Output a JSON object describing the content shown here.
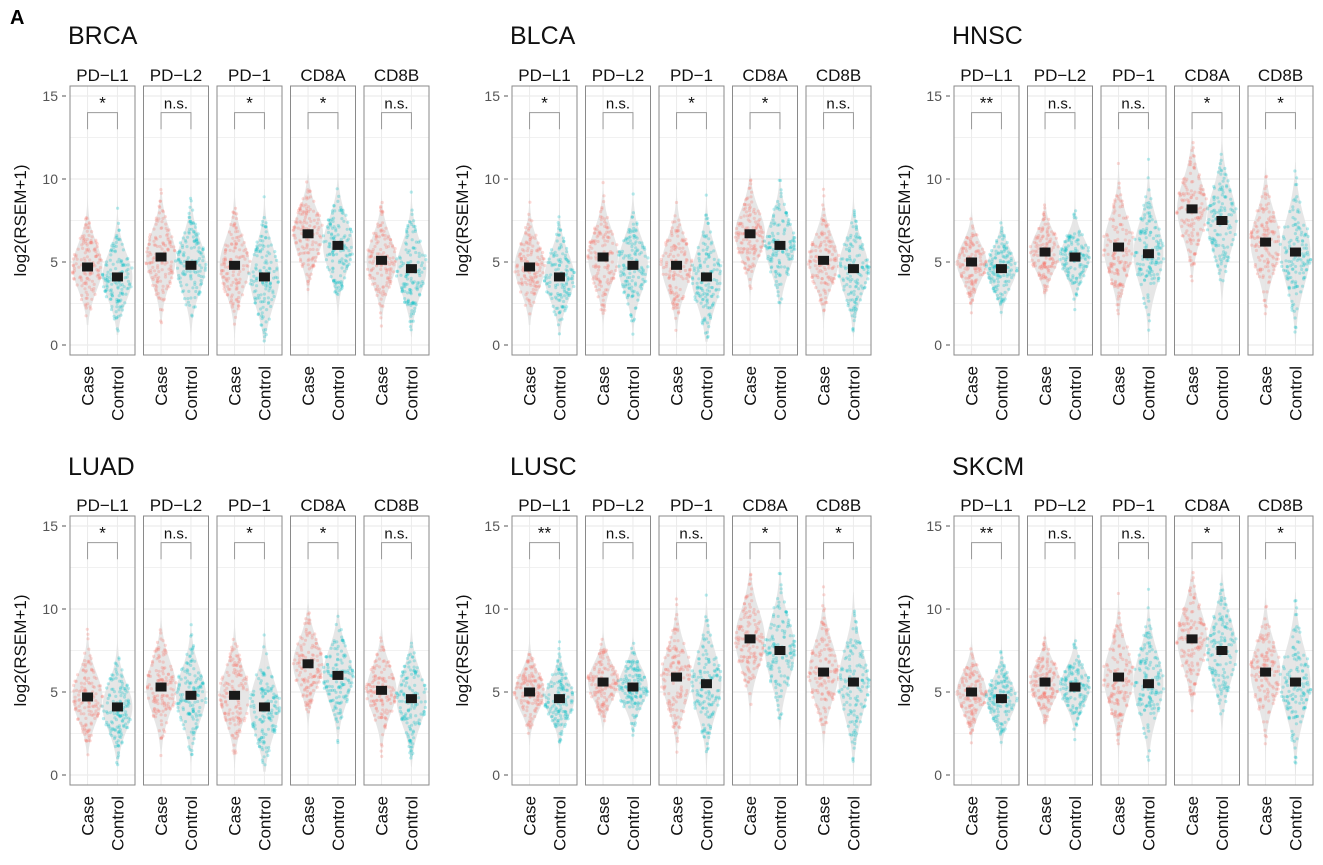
{
  "panel_label": "A",
  "colors": {
    "case": "#F8766D",
    "control": "#00BFC4",
    "violin": "#e3e3e3",
    "mean_marker": "#1a1a1a",
    "frame": "#8a8a8a",
    "grid": "#ececec"
  },
  "chart_data": [
    {
      "type": "violin",
      "title": "BRCA",
      "ylabel": "log2(RSEM+1)",
      "ylim": [
        0,
        15
      ],
      "yticks": [
        0,
        5,
        10,
        15
      ],
      "grid": true,
      "groups": [
        "Case",
        "Control"
      ],
      "facets": [
        {
          "gene": "PD−L1",
          "signif": "*",
          "means": [
            4.7,
            4.1
          ],
          "spread": [
            2.0,
            2.0
          ],
          "range": [
            [
              1.2,
              9.8
            ],
            [
              0.6,
              9.2
            ]
          ]
        },
        {
          "gene": "PD−L2",
          "signif": "n.s.",
          "means": [
            5.3,
            4.8
          ],
          "spread": [
            2.2,
            2.2
          ],
          "range": [
            [
              0.6,
              10.0
            ],
            [
              0.3,
              9.6
            ]
          ]
        },
        {
          "gene": "PD−1",
          "signif": "*",
          "means": [
            4.8,
            4.1
          ],
          "spread": [
            2.2,
            2.4
          ],
          "range": [
            [
              0.4,
              9.6
            ],
            [
              0.2,
              9.4
            ]
          ]
        },
        {
          "gene": "CD8A",
          "signif": "*",
          "means": [
            6.7,
            6.0
          ],
          "spread": [
            2.0,
            2.2
          ],
          "range": [
            [
              2.0,
              11.8
            ],
            [
              1.5,
              12.5
            ]
          ]
        },
        {
          "gene": "CD8B",
          "signif": "n.s.",
          "means": [
            5.1,
            4.6
          ],
          "spread": [
            2.0,
            2.2
          ],
          "range": [
            [
              1.0,
              10.5
            ],
            [
              0.5,
              11.0
            ]
          ]
        }
      ]
    },
    {
      "type": "violin",
      "title": "BLCA",
      "ylabel": "log2(RSEM+1)",
      "ylim": [
        0,
        15
      ],
      "yticks": [
        0,
        5,
        10,
        15
      ],
      "grid": true,
      "groups": [
        "Case",
        "Control"
      ],
      "facets": [
        {
          "gene": "PD−L1",
          "signif": "*",
          "means": [
            4.7,
            4.1
          ],
          "spread": [
            2.0,
            2.0
          ],
          "range": [
            [
              1.2,
              9.8
            ],
            [
              0.6,
              9.2
            ]
          ]
        },
        {
          "gene": "PD−L2",
          "signif": "n.s.",
          "means": [
            5.3,
            4.8
          ],
          "spread": [
            2.2,
            2.2
          ],
          "range": [
            [
              0.6,
              10.0
            ],
            [
              0.3,
              9.6
            ]
          ]
        },
        {
          "gene": "PD−1",
          "signif": "*",
          "means": [
            4.8,
            4.1
          ],
          "spread": [
            2.2,
            2.4
          ],
          "range": [
            [
              0.4,
              9.6
            ],
            [
              0.2,
              9.4
            ]
          ]
        },
        {
          "gene": "CD8A",
          "signif": "*",
          "means": [
            6.7,
            6.0
          ],
          "spread": [
            2.0,
            2.2
          ],
          "range": [
            [
              2.0,
              11.8
            ],
            [
              1.5,
              12.5
            ]
          ]
        },
        {
          "gene": "CD8B",
          "signif": "n.s.",
          "means": [
            5.1,
            4.6
          ],
          "spread": [
            2.0,
            2.2
          ],
          "range": [
            [
              1.0,
              10.5
            ],
            [
              0.5,
              11.0
            ]
          ]
        }
      ]
    },
    {
      "type": "violin",
      "title": "HNSC",
      "ylabel": "log2(RSEM+1)",
      "ylim": [
        0,
        15
      ],
      "yticks": [
        0,
        5,
        10,
        15
      ],
      "grid": true,
      "groups": [
        "Case",
        "Control"
      ],
      "facets": [
        {
          "gene": "PD−L1",
          "signif": "**",
          "means": [
            5.0,
            4.6
          ],
          "spread": [
            1.6,
            1.6
          ],
          "range": [
            [
              1.8,
              8.8
            ],
            [
              1.5,
              8.5
            ]
          ]
        },
        {
          "gene": "PD−L2",
          "signif": "n.s.",
          "means": [
            5.6,
            5.3
          ],
          "spread": [
            1.6,
            1.6
          ],
          "range": [
            [
              2.0,
              9.4
            ],
            [
              1.5,
              9.0
            ]
          ]
        },
        {
          "gene": "PD−1",
          "signif": "n.s.",
          "means": [
            5.9,
            5.5
          ],
          "spread": [
            2.4,
            2.6
          ],
          "range": [
            [
              0.5,
              11.0
            ],
            [
              0.3,
              11.2
            ]
          ]
        },
        {
          "gene": "CD8A",
          "signif": "*",
          "means": [
            8.2,
            7.5
          ],
          "spread": [
            2.4,
            2.6
          ],
          "range": [
            [
              2.5,
              13.5
            ],
            [
              1.5,
              13.0
            ]
          ]
        },
        {
          "gene": "CD8B",
          "signif": "*",
          "means": [
            6.2,
            5.6
          ],
          "spread": [
            2.4,
            2.8
          ],
          "range": [
            [
              0.8,
              11.5
            ],
            [
              0.0,
              11.0
            ]
          ]
        }
      ]
    },
    {
      "type": "violin",
      "title": "LUAD",
      "ylabel": "log2(RSEM+1)",
      "ylim": [
        0,
        15
      ],
      "yticks": [
        0,
        5,
        10,
        15
      ],
      "grid": true,
      "groups": [
        "Case",
        "Control"
      ],
      "facets": [
        {
          "gene": "PD−L1",
          "signif": "*",
          "means": [
            4.7,
            4.1
          ],
          "spread": [
            2.0,
            2.0
          ],
          "range": [
            [
              1.2,
              9.8
            ],
            [
              0.6,
              9.2
            ]
          ]
        },
        {
          "gene": "PD−L2",
          "signif": "n.s.",
          "means": [
            5.3,
            4.8
          ],
          "spread": [
            2.2,
            2.2
          ],
          "range": [
            [
              0.6,
              10.0
            ],
            [
              0.3,
              9.6
            ]
          ]
        },
        {
          "gene": "PD−1",
          "signif": "*",
          "means": [
            4.8,
            4.1
          ],
          "spread": [
            2.2,
            2.4
          ],
          "range": [
            [
              0.4,
              9.6
            ],
            [
              0.2,
              9.4
            ]
          ]
        },
        {
          "gene": "CD8A",
          "signif": "*",
          "means": [
            6.7,
            6.0
          ],
          "spread": [
            2.0,
            2.2
          ],
          "range": [
            [
              2.0,
              11.8
            ],
            [
              1.5,
              12.5
            ]
          ]
        },
        {
          "gene": "CD8B",
          "signif": "n.s.",
          "means": [
            5.1,
            4.6
          ],
          "spread": [
            2.0,
            2.2
          ],
          "range": [
            [
              1.0,
              10.5
            ],
            [
              0.5,
              11.0
            ]
          ]
        }
      ]
    },
    {
      "type": "violin",
      "title": "LUSC",
      "ylabel": "log2(RSEM+1)",
      "ylim": [
        0,
        15
      ],
      "yticks": [
        0,
        5,
        10,
        15
      ],
      "grid": true,
      "groups": [
        "Case",
        "Control"
      ],
      "facets": [
        {
          "gene": "PD−L1",
          "signif": "**",
          "means": [
            5.0,
            4.6
          ],
          "spread": [
            1.6,
            1.6
          ],
          "range": [
            [
              1.8,
              8.8
            ],
            [
              1.5,
              8.5
            ]
          ]
        },
        {
          "gene": "PD−L2",
          "signif": "n.s.",
          "means": [
            5.6,
            5.3
          ],
          "spread": [
            1.6,
            1.6
          ],
          "range": [
            [
              2.0,
              9.4
            ],
            [
              1.5,
              9.0
            ]
          ]
        },
        {
          "gene": "PD−1",
          "signif": "n.s.",
          "means": [
            5.9,
            5.5
          ],
          "spread": [
            2.4,
            2.6
          ],
          "range": [
            [
              0.5,
              11.0
            ],
            [
              0.3,
              11.2
            ]
          ]
        },
        {
          "gene": "CD8A",
          "signif": "*",
          "means": [
            8.2,
            7.5
          ],
          "spread": [
            2.4,
            2.6
          ],
          "range": [
            [
              2.5,
              13.5
            ],
            [
              1.5,
              13.0
            ]
          ]
        },
        {
          "gene": "CD8B",
          "signif": "*",
          "means": [
            6.2,
            5.6
          ],
          "spread": [
            2.4,
            2.8
          ],
          "range": [
            [
              0.8,
              11.5
            ],
            [
              0.0,
              11.0
            ]
          ]
        }
      ]
    },
    {
      "type": "violin",
      "title": "SKCM",
      "ylabel": "log2(RSEM+1)",
      "ylim": [
        0,
        15
      ],
      "yticks": [
        0,
        5,
        10,
        15
      ],
      "grid": true,
      "groups": [
        "Case",
        "Control"
      ],
      "facets": [
        {
          "gene": "PD−L1",
          "signif": "**",
          "means": [
            5.0,
            4.6
          ],
          "spread": [
            1.6,
            1.6
          ],
          "range": [
            [
              1.8,
              8.8
            ],
            [
              1.5,
              8.5
            ]
          ]
        },
        {
          "gene": "PD−L2",
          "signif": "n.s.",
          "means": [
            5.6,
            5.3
          ],
          "spread": [
            1.6,
            1.6
          ],
          "range": [
            [
              2.0,
              9.4
            ],
            [
              1.5,
              9.0
            ]
          ]
        },
        {
          "gene": "PD−1",
          "signif": "n.s.",
          "means": [
            5.9,
            5.5
          ],
          "spread": [
            2.4,
            2.6
          ],
          "range": [
            [
              0.5,
              11.0
            ],
            [
              0.3,
              11.2
            ]
          ]
        },
        {
          "gene": "CD8A",
          "signif": "*",
          "means": [
            8.2,
            7.5
          ],
          "spread": [
            2.4,
            2.6
          ],
          "range": [
            [
              2.5,
              13.5
            ],
            [
              1.5,
              13.0
            ]
          ]
        },
        {
          "gene": "CD8B",
          "signif": "*",
          "means": [
            6.2,
            5.6
          ],
          "spread": [
            2.4,
            2.8
          ],
          "range": [
            [
              0.8,
              11.5
            ],
            [
              0.0,
              11.0
            ]
          ]
        }
      ]
    }
  ]
}
